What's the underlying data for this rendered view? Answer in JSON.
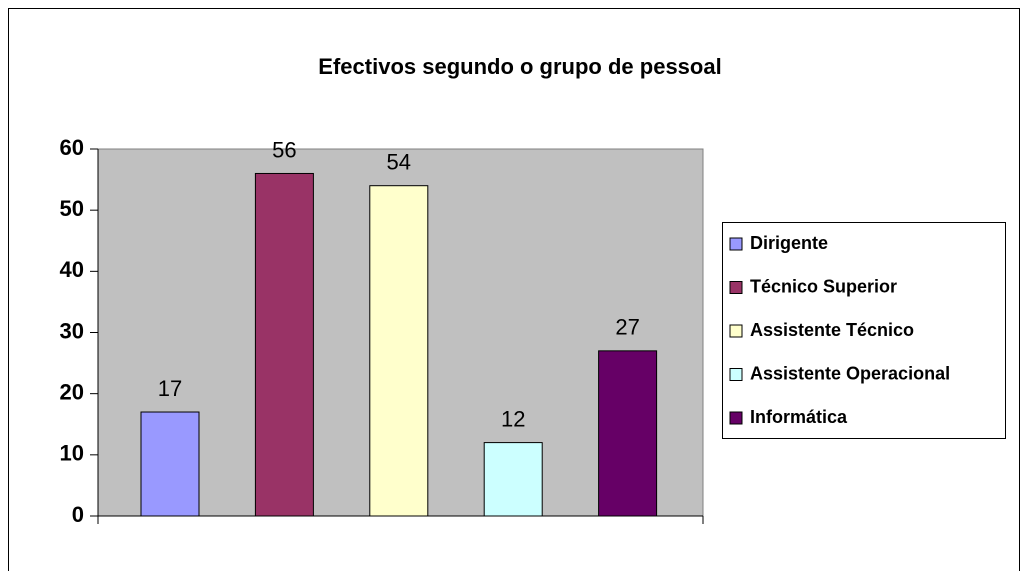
{
  "chart_data": {
    "type": "bar",
    "title": "Efectivos segundo o grupo de pessoal",
    "series": [
      {
        "name": "Dirigente",
        "color": "#9999ff",
        "values": [
          17
        ]
      },
      {
        "name": "Técnico Superior",
        "color": "#993366",
        "values": [
          56
        ]
      },
      {
        "name": "Assistente Técnico",
        "color": "#ffffcc",
        "values": [
          54
        ]
      },
      {
        "name": "Assistente Operacional",
        "color": "#ccffff",
        "values": [
          12
        ]
      },
      {
        "name": "Informática",
        "color": "#660066",
        "values": [
          27
        ]
      }
    ],
    "ylim": [
      0,
      60
    ],
    "yticks": [
      0,
      10,
      20,
      30,
      40,
      50,
      60
    ],
    "legend": "right"
  }
}
